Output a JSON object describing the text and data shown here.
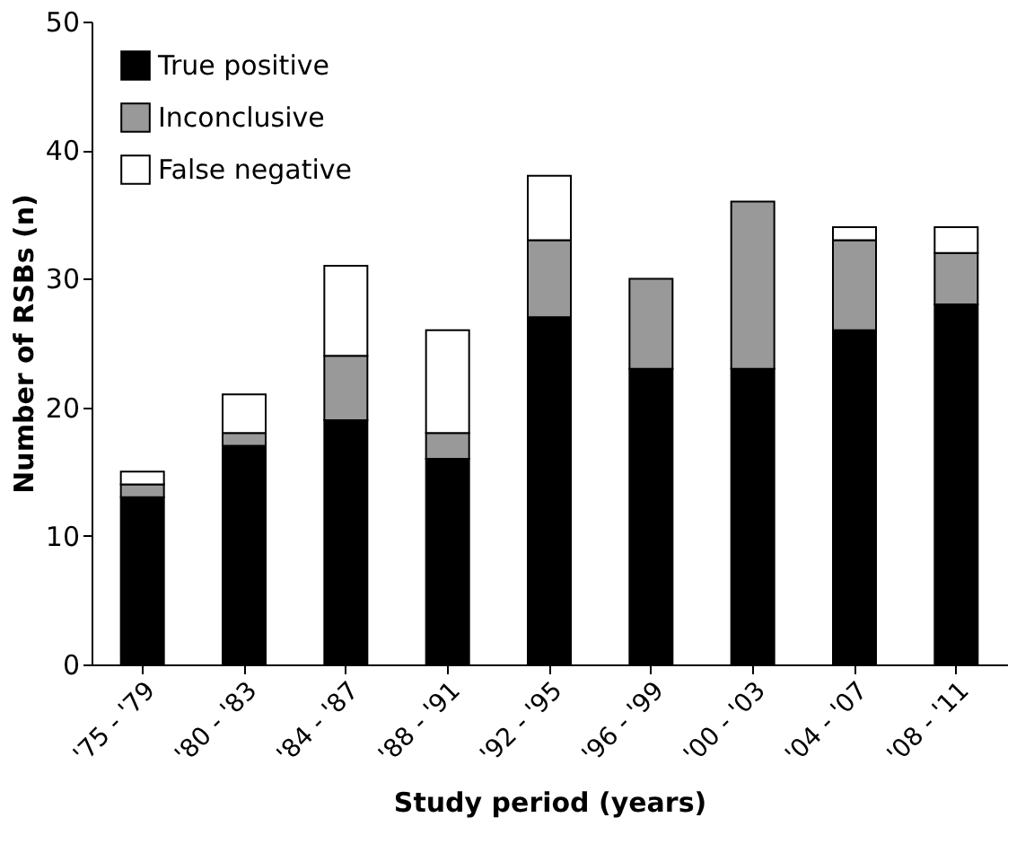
{
  "chart_data": {
    "type": "bar",
    "stacked": true,
    "xlabel": "Study period (years)",
    "ylabel": "Number of RSBs (n)",
    "categories": [
      "'75 - '79",
      "'80 - '83",
      "'84 - '87",
      "'88 - '91",
      "'92 - '95",
      "'96 - '99",
      "'00 - '03",
      "'04 - '07",
      "'08 - '11"
    ],
    "series": [
      {
        "name": "True positive",
        "color": "#000000",
        "values": [
          13,
          17,
          19,
          16,
          27,
          23,
          23,
          26,
          28
        ]
      },
      {
        "name": "Inconclusive",
        "color": "#999999",
        "values": [
          1,
          1,
          5,
          2,
          6,
          7,
          13,
          7,
          4
        ]
      },
      {
        "name": "False negative",
        "color": "#ffffff",
        "values": [
          1,
          3,
          7,
          8,
          5,
          0,
          0,
          1,
          2
        ]
      }
    ],
    "ylim": [
      0,
      50
    ],
    "yticks": [
      0,
      10,
      20,
      30,
      40,
      50
    ],
    "grid": false,
    "legend": "top left"
  }
}
